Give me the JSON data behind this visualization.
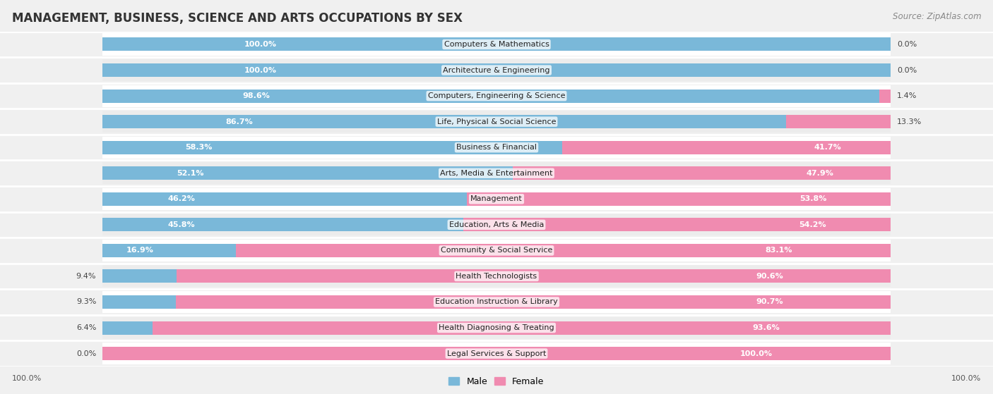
{
  "title": "MANAGEMENT, BUSINESS, SCIENCE AND ARTS OCCUPATIONS BY SEX",
  "source": "Source: ZipAtlas.com",
  "categories": [
    "Computers & Mathematics",
    "Architecture & Engineering",
    "Computers, Engineering & Science",
    "Life, Physical & Social Science",
    "Business & Financial",
    "Arts, Media & Entertainment",
    "Management",
    "Education, Arts & Media",
    "Community & Social Service",
    "Health Technologists",
    "Education Instruction & Library",
    "Health Diagnosing & Treating",
    "Legal Services & Support"
  ],
  "male": [
    100.0,
    100.0,
    98.6,
    86.7,
    58.3,
    52.1,
    46.2,
    45.8,
    16.9,
    9.4,
    9.3,
    6.4,
    0.0
  ],
  "female": [
    0.0,
    0.0,
    1.4,
    13.3,
    41.7,
    47.9,
    53.8,
    54.2,
    83.1,
    90.6,
    90.7,
    93.6,
    100.0
  ],
  "male_color": "#7ab8d9",
  "female_color": "#f08bb0",
  "background_color": "#f0f0f0",
  "row_bg_even": "#e8e8e8",
  "row_bg_odd": "#ffffff",
  "title_fontsize": 12,
  "source_fontsize": 8.5,
  "label_fontsize": 8,
  "cat_fontsize": 8
}
